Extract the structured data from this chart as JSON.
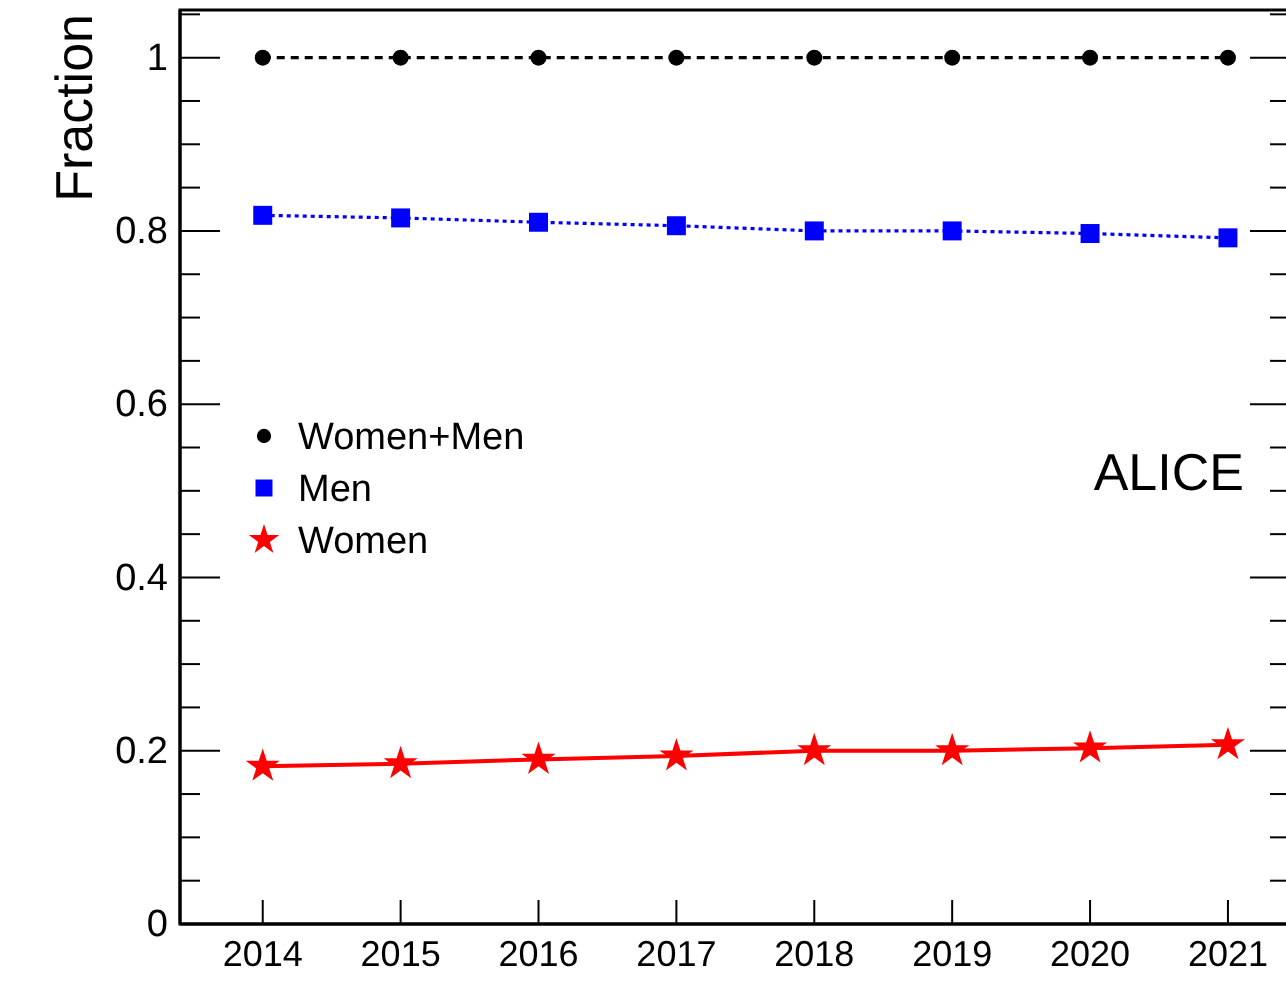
{
  "chart_data": {
    "type": "line",
    "ylabel": "Fraction",
    "x": [
      2014,
      2015,
      2016,
      2017,
      2018,
      2019,
      2020,
      2021
    ],
    "xlim": [
      2013.4,
      2021.45
    ],
    "xticks": [
      2014,
      2015,
      2016,
      2017,
      2018,
      2019,
      2020,
      2021
    ],
    "ylim": [
      0,
      1.055
    ],
    "yticks": [
      0,
      {
        "value": 0.05,
        "label": null
      },
      {
        "value": 0.1,
        "label": null
      },
      {
        "value": 0.15,
        "label": null
      },
      0.2,
      {
        "value": 0.25,
        "label": null
      },
      {
        "value": 0.3,
        "label": null
      },
      {
        "value": 0.35,
        "label": null
      },
      0.4,
      {
        "value": 0.45,
        "label": null
      },
      {
        "value": 0.5,
        "label": null
      },
      {
        "value": 0.55,
        "label": null
      },
      0.6,
      {
        "value": 0.65,
        "label": null
      },
      {
        "value": 0.7,
        "label": null
      },
      {
        "value": 0.75,
        "label": null
      },
      0.8,
      {
        "value": 0.85,
        "label": null
      },
      {
        "value": 0.9,
        "label": null
      },
      {
        "value": 0.95,
        "label": null
      },
      1,
      {
        "value": 1.05,
        "label": null
      }
    ],
    "series": [
      {
        "name": "Women+Men",
        "color": "#000000",
        "marker": "circle",
        "line_style": "dashed",
        "values": [
          1,
          1,
          1,
          1,
          1,
          1,
          1,
          1
        ]
      },
      {
        "name": "Men",
        "color": "#0000ff",
        "marker": "square",
        "line_style": "dotted",
        "values": [
          0.818,
          0.815,
          0.81,
          0.806,
          0.8,
          0.8,
          0.797,
          0.792
        ]
      },
      {
        "name": "Women",
        "color": "#ff0000",
        "marker": "star",
        "line_style": "solid",
        "values": [
          0.182,
          0.185,
          0.19,
          0.194,
          0.2,
          0.2,
          0.203,
          0.207
        ]
      }
    ],
    "legend": "left",
    "annotations": [
      {
        "text": "ALICE"
      }
    ]
  }
}
